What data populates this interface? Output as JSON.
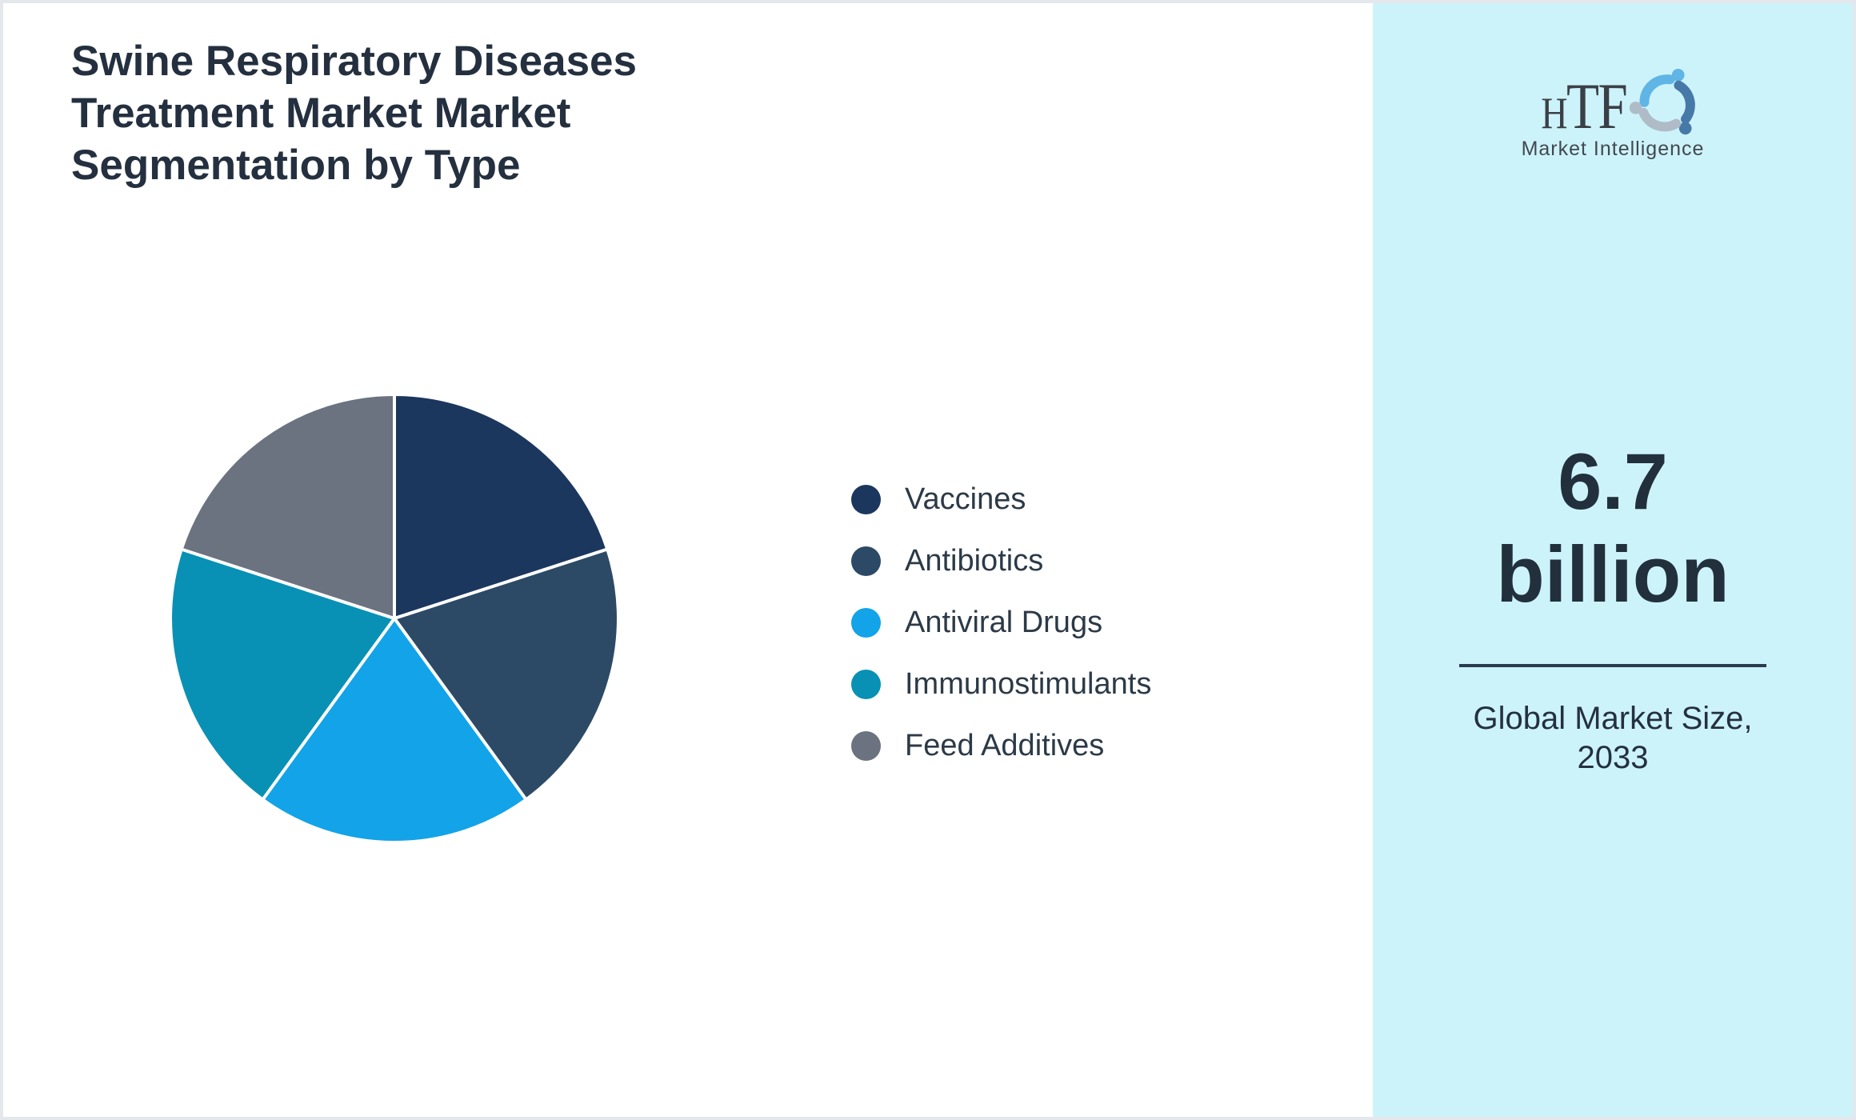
{
  "header": {
    "title": "Swine Respiratory Diseases\nTreatment Market Market\nSegmentation by Type",
    "title_color": "#24303F"
  },
  "chart_data": {
    "type": "pie",
    "title": "Swine Respiratory Diseases Treatment Market Market Segmentation by Type",
    "labels": [
      "Vaccines",
      "Antibiotics",
      "Antiviral Drugs",
      "Immunostimulants",
      "Feed Additives"
    ],
    "values": [
      20,
      20,
      20,
      20,
      20
    ],
    "colors": [
      "#1C375E",
      "#2C4A66",
      "#12A3E8",
      "#0891B5",
      "#6B7280"
    ],
    "start_angle_deg": 0,
    "direction": "clockwise",
    "slice_border_color": "#ffffff",
    "labels_on_slices": false,
    "legend_position": "right-of-chart",
    "legend_text_color": "#2C3A47"
  },
  "sidebar": {
    "background": "#CDF3FA",
    "logo": {
      "text": "HTF",
      "text_h": "H",
      "text_tf": "TF",
      "subtext": "Market Intelligence",
      "icon": "logo-swirl-icon",
      "icon_colors": [
        "#5FB5E5",
        "#4679A8",
        "#AFBCC8"
      ]
    },
    "metric_value": "6.7\nbillion",
    "metric_caption": "Global Market Size,\n2033",
    "text_color": "#22303E",
    "divider_color": "#2B3B4E"
  },
  "page": {
    "background": "#ffffff",
    "border_color": "#E4E7EB"
  }
}
